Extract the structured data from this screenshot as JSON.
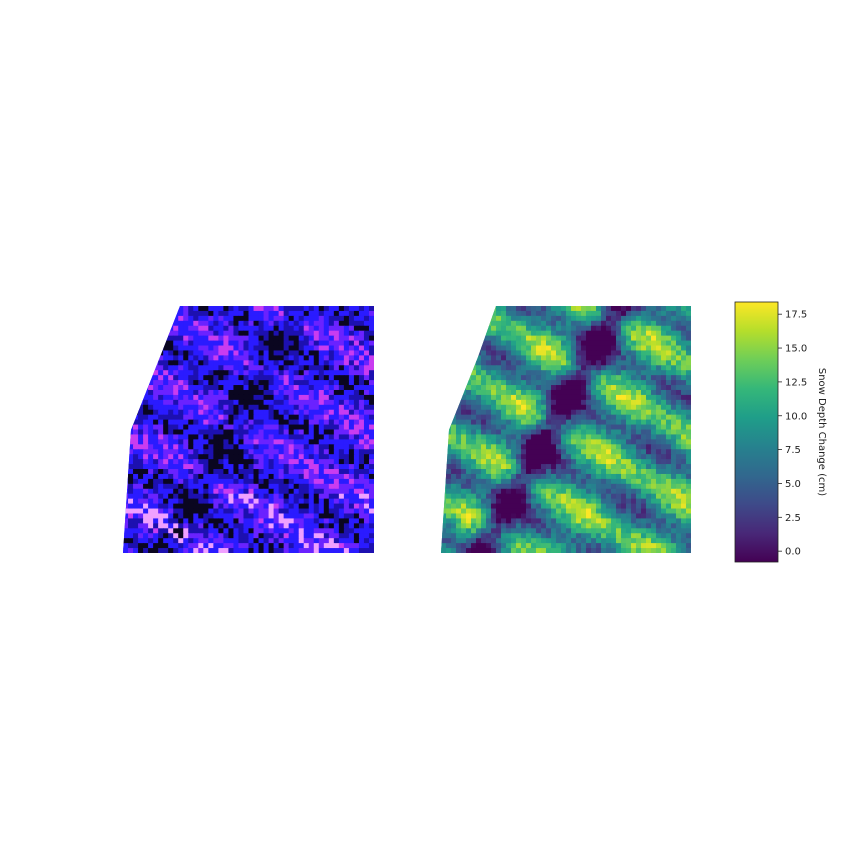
{
  "chart_data": {
    "type": "heatmap",
    "panels": [
      {
        "name": "rgb-composite",
        "colors": {
          "base": "#2a1bff",
          "dark": "#0a0620",
          "highlight": "#e04cf0",
          "bright": "#ffd8ff"
        }
      },
      {
        "name": "snow-depth-change",
        "colormap": "viridis"
      }
    ],
    "colorbar": {
      "label": "Snow Depth Change (cm)",
      "vmin": -0.8,
      "vmax": 18.4,
      "ticks": [
        "0.0",
        "2.5",
        "5.0",
        "7.5",
        "10.0",
        "12.5",
        "15.0",
        "17.5"
      ],
      "tick_values": [
        0.0,
        2.5,
        5.0,
        7.5,
        10.0,
        12.5,
        15.0,
        17.5
      ],
      "colormap": "viridis",
      "stops": [
        "#440154",
        "#482878",
        "#3e4a89",
        "#31688e",
        "#26828e",
        "#1f9e89",
        "#35b779",
        "#6ece58",
        "#b5de2b",
        "#fde725"
      ]
    }
  }
}
